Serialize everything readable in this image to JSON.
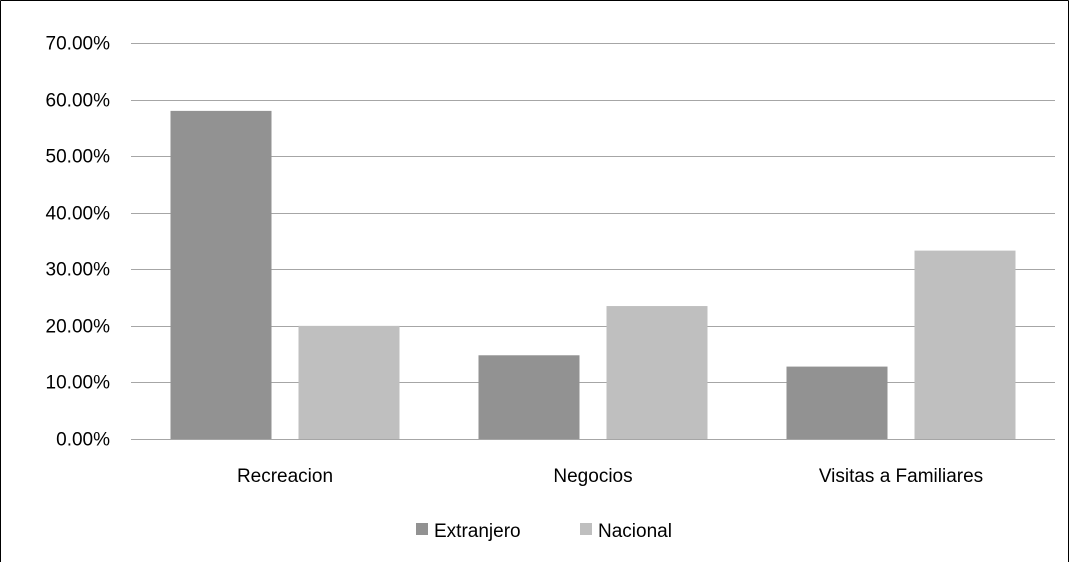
{
  "chart_data": {
    "type": "bar",
    "title": "",
    "xlabel": "",
    "ylabel": "",
    "categories": [
      "Recreacion",
      "Negocios",
      "Visitas a Familiares"
    ],
    "series": [
      {
        "name": "Extranjero",
        "values": [
          0.58,
          0.148,
          0.128
        ],
        "color": "#929292"
      },
      {
        "name": "Nacional",
        "values": [
          0.2,
          0.235,
          0.333
        ],
        "color": "#bfbfbf"
      }
    ],
    "ylim": [
      0,
      0.7
    ],
    "yticks": [
      0,
      0.1,
      0.2,
      0.3,
      0.4,
      0.5,
      0.6,
      0.7
    ],
    "ytick_labels": [
      "0.00%",
      "10.00%",
      "20.00%",
      "30.00%",
      "40.00%",
      "50.00%",
      "60.00%",
      "70.00%"
    ],
    "grid": true,
    "legend": "bottom",
    "colors": {
      "gridline": "#a6a6a6",
      "frame": "#000000"
    }
  }
}
